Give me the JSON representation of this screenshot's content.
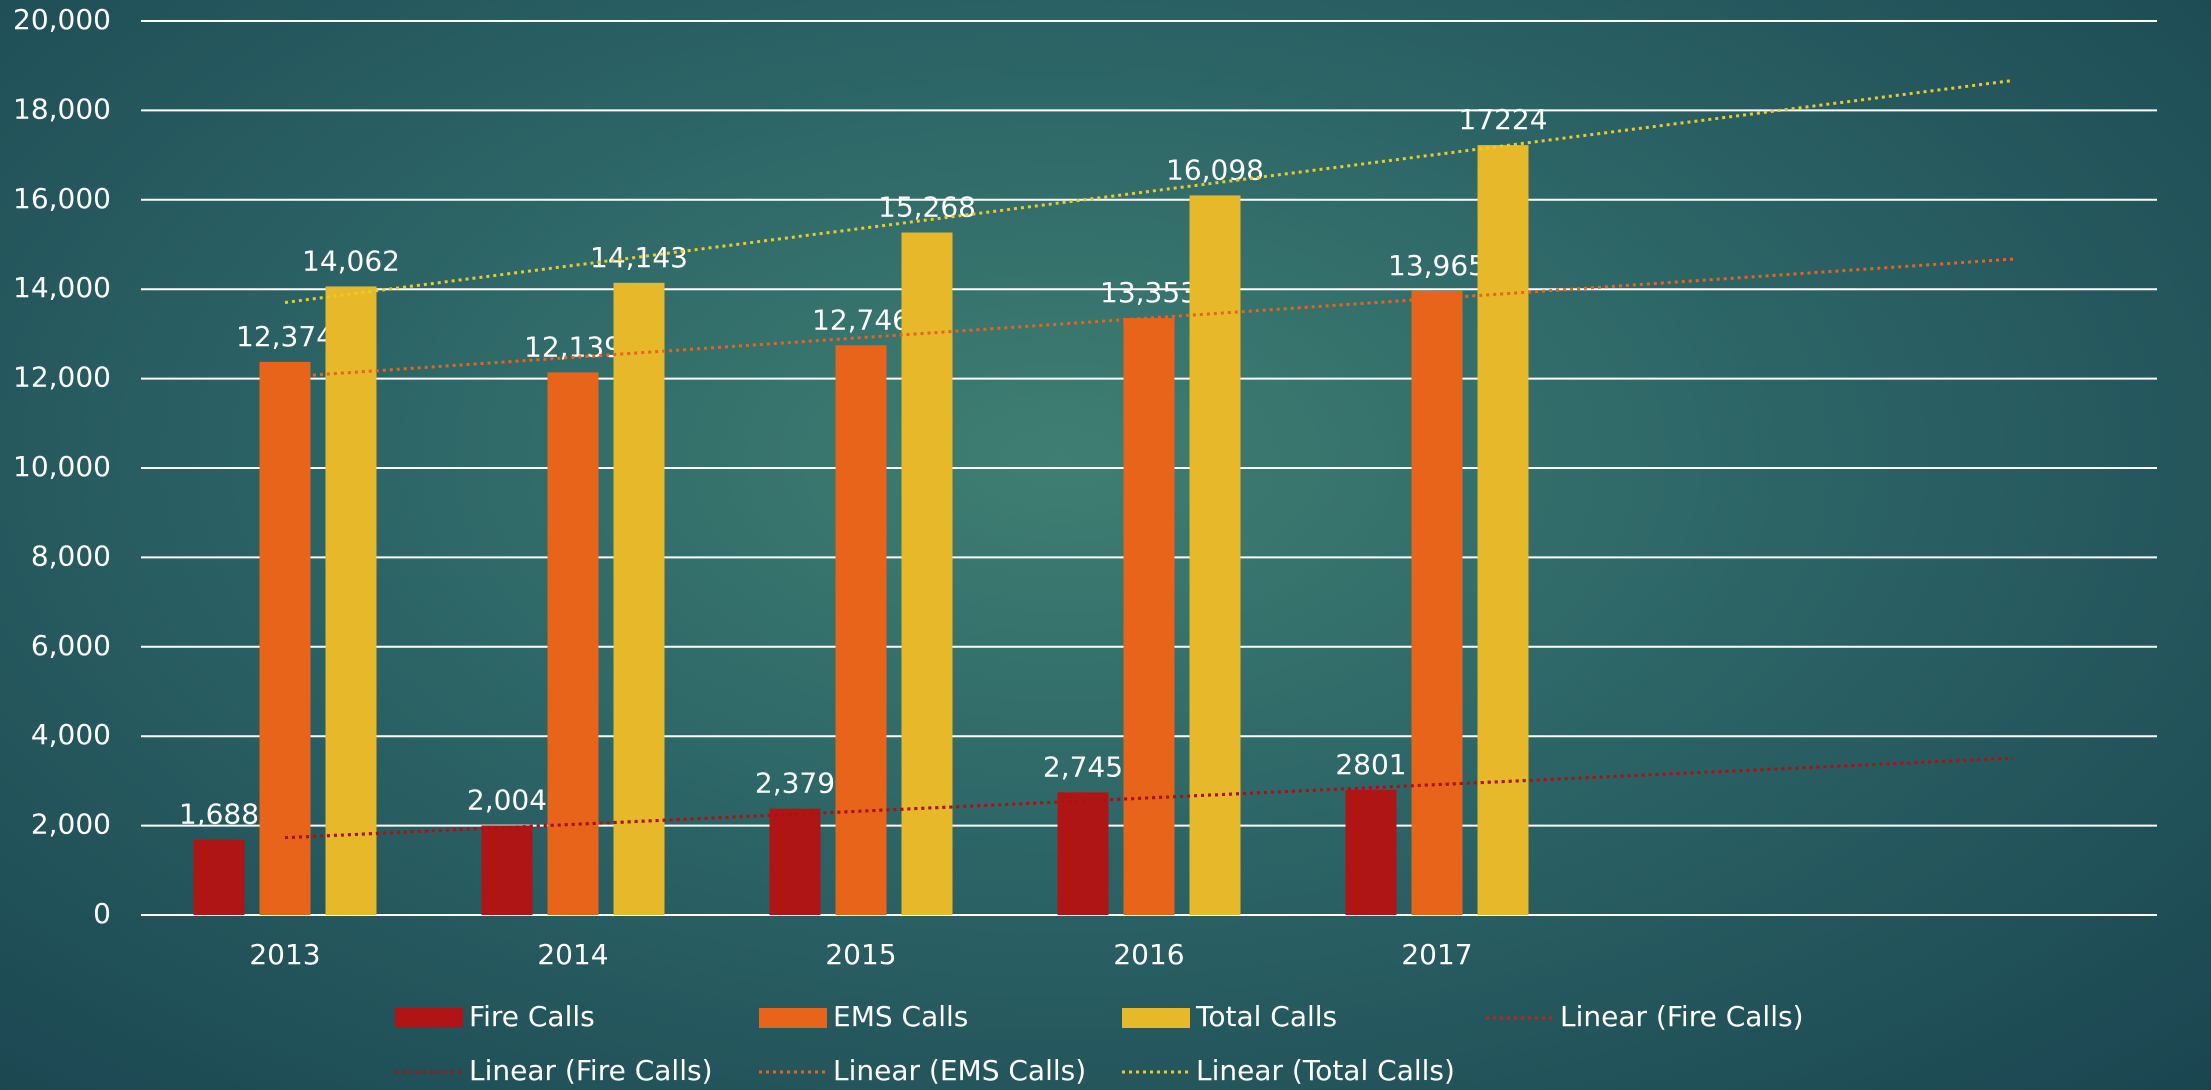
{
  "chart_data": {
    "type": "bar",
    "categories": [
      "2013",
      "2014",
      "2015",
      "2016",
      "2017",
      null,
      null
    ],
    "series": [
      {
        "name": "Fire Calls",
        "color": "#b01515",
        "values": [
          1688,
          2004,
          2379,
          2745,
          2801,
          null,
          null
        ],
        "value_labels": [
          "1,688",
          "2,004",
          "2,379",
          "2,745",
          "2801",
          null,
          null
        ]
      },
      {
        "name": "EMS Calls",
        "color": "#e8641a",
        "values": [
          12374,
          12139,
          12746,
          13353,
          13965,
          null,
          null
        ],
        "value_labels": [
          "12,374",
          "12,139",
          "12,746",
          "13,353",
          "13,965",
          null,
          null
        ]
      },
      {
        "name": "Total Calls",
        "color": "#e6b82a",
        "values": [
          14062,
          14143,
          15268,
          16098,
          17224,
          null,
          null
        ],
        "value_labels": [
          "14,062",
          "14,143",
          "15,268",
          "16,098",
          "17224",
          null,
          null
        ]
      }
    ],
    "trendlines": [
      {
        "name": "Linear (Fire Calls)",
        "series": 0,
        "color": "#c8201c"
      },
      {
        "name": "Linear (Fire Calls)",
        "series": 0,
        "color": "#a81212"
      },
      {
        "name": "Linear (EMS Calls)",
        "series": 1,
        "color": "#e8641a"
      },
      {
        "name": "Linear (Total Calls)",
        "series": 2,
        "color": "#ecc92c"
      }
    ],
    "ylim": [
      0,
      20000
    ],
    "yticks": [
      0,
      {
        "value": 2000,
        "label": "2,000"
      },
      {
        "value": 4000,
        "label": "4,000"
      },
      {
        "value": 6000,
        "label": "6,000"
      },
      {
        "value": 8000,
        "label": "8,000"
      },
      {
        "value": 10000,
        "label": "10,000"
      },
      {
        "value": 12000,
        "label": "12,000"
      },
      {
        "value": 14000,
        "label": "14,000"
      },
      {
        "value": 16000,
        "label": "16,000"
      },
      {
        "value": 18000,
        "label": "18,000"
      },
      {
        "value": 20000,
        "label": "20,000"
      }
    ],
    "grid": true,
    "legend": "bottom"
  }
}
